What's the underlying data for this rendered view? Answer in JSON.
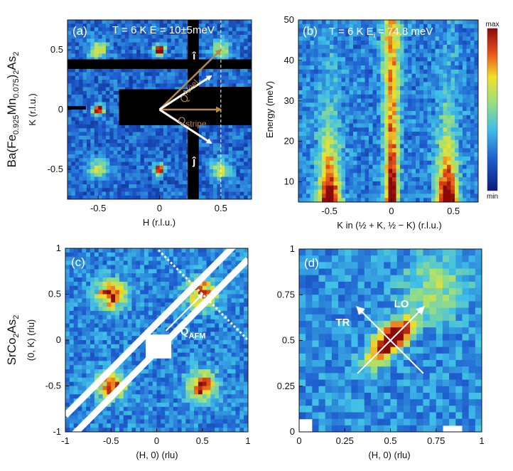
{
  "chart_data": [
    {
      "id": "a",
      "type": "heatmap",
      "panel_label": "(a)",
      "annotation": "T = 6 K   E = 10±5meV",
      "xlabel": "H (r.l.u.)",
      "ylabel": "K (r.l.u.)",
      "xlim": [
        -0.75,
        0.75
      ],
      "ylim": [
        -0.75,
        0.75
      ],
      "xticks": [
        -0.5,
        0,
        0.5
      ],
      "yticks": [
        -0.5,
        0,
        0.5
      ],
      "xtick_labels": [
        "-0.5",
        "0",
        "0.5"
      ],
      "ytick_labels": [
        "-0.5",
        "0",
        "0.5"
      ],
      "sample_label": "Ba(Fe0.925Mn0.075)2As2",
      "vectors": [
        {
          "name": "Q_Neel",
          "label": "QNeel",
          "from": [
            0,
            0
          ],
          "to": [
            0.5,
            0.5
          ],
          "color": "#b8874a"
        },
        {
          "name": "Q_stripe",
          "label": "Qstripe",
          "from": [
            0,
            0
          ],
          "to": [
            0.5,
            0
          ],
          "color": "#b8874a"
        },
        {
          "name": "i_hat",
          "label": "î",
          "from": [
            0,
            0
          ],
          "to": [
            0.42,
            0.28
          ],
          "color": "#ffffff"
        },
        {
          "name": "j_hat",
          "label": "ĵ",
          "from": [
            0,
            0
          ],
          "to": [
            0.42,
            -0.28
          ],
          "color": "#ffffff"
        }
      ],
      "peaks": [
        [
          0,
          0.5
        ],
        [
          -0.5,
          0
        ],
        [
          0,
          -0.5
        ],
        [
          0.5,
          0
        ],
        [
          -0.5,
          0.5
        ],
        [
          0.5,
          0.5
        ],
        [
          -0.5,
          -0.5
        ],
        [
          0.5,
          -0.5
        ]
      ],
      "dashed_line_x": 0.5
    },
    {
      "id": "b",
      "type": "heatmap",
      "panel_label": "(b)",
      "annotation": "T = 6 K  Ei = 74.8 meV",
      "xlabel": "K in (½ + K, ½ − K) (r.l.u.)",
      "ylabel": "Energy (meV)",
      "xlim": [
        -0.75,
        0.7
      ],
      "ylim": [
        5,
        50
      ],
      "xticks": [
        -0.5,
        0,
        0.5
      ],
      "yticks": [
        10,
        20,
        30,
        40,
        50
      ],
      "xtick_labels": [
        "-0.5",
        "0",
        "0.5"
      ],
      "ytick_labels": [
        "10",
        "20",
        "30",
        "40",
        "50"
      ],
      "colorbar": {
        "max_label": "max",
        "min_label": "min"
      },
      "branches_x": [
        -0.5,
        0,
        0.45
      ]
    },
    {
      "id": "c",
      "type": "heatmap",
      "panel_label": "(c)",
      "xlabel": "(H, 0) (rlu)",
      "ylabel": "(0, K) (rlu)",
      "xlim": [
        -1,
        1
      ],
      "ylim": [
        -1,
        1
      ],
      "xticks": [
        -1,
        -0.5,
        0,
        0.5,
        1
      ],
      "yticks": [
        -1,
        -0.5,
        0,
        0.5,
        1
      ],
      "xtick_labels": [
        "-1",
        "-0.5",
        "0",
        "0.5",
        "1"
      ],
      "ytick_labels": [
        "-1",
        "-0.5",
        "0",
        "0.5",
        "1"
      ],
      "sample_label": "SrCo2As2",
      "vector": {
        "name": "Q_AFM",
        "label": "QAFM",
        "from": [
          0.1,
          0.1
        ],
        "to": [
          0.5,
          0.5
        ]
      },
      "peaks": [
        [
          0.5,
          0.5
        ],
        [
          -0.5,
          -0.5
        ],
        [
          -0.5,
          0.5
        ],
        [
          0.5,
          -0.5
        ]
      ]
    },
    {
      "id": "d",
      "type": "heatmap",
      "panel_label": "(d)",
      "xlabel": "(H, 0) (rlu)",
      "ylabel": "",
      "xlim": [
        0,
        1
      ],
      "ylim": [
        0,
        1
      ],
      "xticks": [
        0,
        0.25,
        0.5,
        0.75,
        1
      ],
      "yticks": [
        0,
        0.25,
        0.5,
        0.75,
        1
      ],
      "xtick_labels": [
        "0",
        "0.25",
        "0.5",
        "0.75",
        "1"
      ],
      "ytick_labels": [
        "0",
        "0.25",
        "0.5",
        "0.75",
        "1"
      ],
      "directions": [
        {
          "label": "TR",
          "from": [
            0.68,
            0.32
          ],
          "to": [
            0.32,
            0.68
          ]
        },
        {
          "label": "LO",
          "from": [
            0.32,
            0.32
          ],
          "to": [
            0.68,
            0.68
          ]
        }
      ],
      "peak": [
        0.5,
        0.5
      ]
    }
  ],
  "labels": {
    "ba_parts": [
      "Ba(Fe",
      "0.925",
      "Mn",
      "0.075",
      ")",
      "2",
      "As",
      "2"
    ],
    "sr_parts": [
      "SrCo",
      "2",
      "As",
      "2"
    ],
    "qneel_parts": [
      "Q",
      "Néel"
    ],
    "qstripe_parts": [
      "Q",
      "stripe"
    ],
    "qafm_parts": [
      "Q",
      "AFM"
    ],
    "i_hat": "î",
    "j_hat": "ĵ",
    "b_annot_parts": [
      "T = 6 K  E",
      "i",
      " = 74.8 meV"
    ],
    "a_annot": "T = 6 K   E = 10±5meV"
  }
}
